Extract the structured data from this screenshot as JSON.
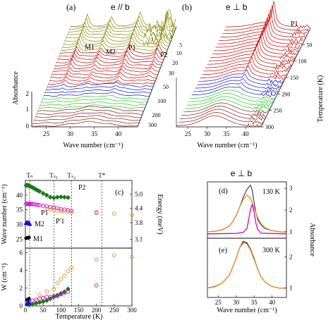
{
  "panels": {
    "a": {
      "label": "(a)",
      "title": "e // b",
      "xlabel": "Wave number (cm⁻¹)",
      "ylabel": "Absorbance",
      "xticks": [
        "25",
        "30",
        "35",
        "40"
      ],
      "yticks": [
        "0",
        "1",
        "2"
      ],
      "ticks": [
        "5",
        "10",
        "20",
        "30",
        "50",
        "100",
        "200",
        "300"
      ],
      "peaks": [
        "M1",
        "M2",
        "P1",
        "P2"
      ]
    },
    "b": {
      "label": "(b)",
      "title": "e ⊥ b",
      "xlabel": "Wave number (cm⁻¹)",
      "zlabel": "Temperature (K)",
      "xticks": [
        "25",
        "30",
        "35",
        "40"
      ],
      "ticks": [
        "50",
        "100",
        "150",
        "200",
        "250",
        "300"
      ],
      "peaks": [
        "P1"
      ]
    },
    "c": {
      "label": "(c)",
      "ylabel_top": "Wave number (cm⁻¹)",
      "ylabel_right": "Energy (meV)",
      "ylabel_bottom": "W (cm⁻¹)",
      "xlabel": "Temperature (K)",
      "topticks": [
        "Tₙ",
        "Tₛ₁",
        "Tₛ₂",
        "T*"
      ],
      "top_yticks": [
        "25",
        "30",
        "35",
        "40"
      ],
      "bottom_yticks": [
        "0",
        "2",
        "4",
        "6"
      ],
      "right_yticks": [
        "3.1",
        "3.8",
        "4.4",
        "5.0"
      ],
      "xticks": [
        "0",
        "50",
        "100",
        "150",
        "200",
        "250",
        "300"
      ],
      "series_labels": [
        "P2",
        "P1",
        "P'1",
        "M2",
        "M1"
      ]
    },
    "de": {
      "title": "e ⊥ b",
      "d_label": "(d)",
      "d_temp": "130 K",
      "e_label": "(e)",
      "e_temp": "300 K",
      "ylabel": "Absorbance",
      "xlabel": "Wave number (cm⁻¹)",
      "xticks": [
        "25",
        "30",
        "35",
        "40"
      ],
      "d_yticks": [
        "1",
        "2",
        "3"
      ],
      "e_yticks": [
        "1",
        "2"
      ]
    }
  },
  "chart_data": [
    {
      "panel": "a",
      "type": "line",
      "title": "e // b",
      "xlabel": "Wave number (cm⁻¹)",
      "ylabel": "Absorbance",
      "x_range": [
        22,
        44
      ],
      "y_range": [
        0,
        2.5
      ],
      "temperatures_K": [
        5,
        10,
        20,
        30,
        50,
        100,
        200,
        300
      ],
      "peak_positions_cm1": {
        "M1": 25.5,
        "M2": 30.5,
        "P1": 36.5,
        "P2": 42.5
      }
    },
    {
      "panel": "b",
      "type": "line",
      "title": "e ⊥ b",
      "xlabel": "Wave number (cm⁻¹)",
      "zlabel": "Temperature (K)",
      "x_range": [
        22,
        44
      ],
      "z_range": [
        0,
        300
      ],
      "peak_positions_cm1": {
        "P1": 34.5
      }
    },
    {
      "panel": "c-top",
      "type": "scatter",
      "xlabel": "Temperature (K)",
      "ylabel": "Wave number (cm⁻¹)",
      "right_ylabel": "Energy (meV)",
      "xlim": [
        0,
        300
      ],
      "ylim": [
        22,
        45
      ],
      "vlines": [
        {
          "label": "Tₙ",
          "x": 12
        },
        {
          "label": "Tₛ₁",
          "x": 80
        },
        {
          "label": "Tₛ₂",
          "x": 130
        },
        {
          "label": "T*",
          "x": 215
        }
      ],
      "series": [
        {
          "name": "P2",
          "color": "#1a7a1a",
          "marker": "diamond",
          "x": [
            2,
            5,
            8,
            10,
            12,
            15,
            20,
            25,
            30,
            35,
            40,
            50,
            60,
            70,
            80,
            90,
            100,
            110,
            120
          ],
          "y": [
            43.3,
            43.4,
            43.3,
            43.2,
            43.1,
            42.9,
            42.6,
            42.3,
            41.9,
            41.6,
            41.3,
            40.6,
            40.0,
            39.3,
            39.1,
            39.3,
            39.4,
            39.3,
            39.2
          ]
        },
        {
          "name": "P1",
          "color": "#d000d0",
          "marker": "circle-open",
          "x": [
            2,
            5,
            8,
            10,
            12,
            15,
            20,
            25,
            30,
            35,
            40,
            50,
            60,
            70,
            80,
            90,
            100,
            110,
            120,
            130,
            200
          ],
          "y": [
            37.1,
            37.1,
            37.0,
            37.0,
            37.0,
            37.0,
            37.0,
            36.9,
            36.8,
            36.7,
            36.6,
            36.4,
            36.2,
            36.0,
            35.8,
            35.6,
            35.3,
            35.1,
            34.9,
            34.7,
            34.2
          ]
        },
        {
          "name": "P'1",
          "color": "#f08a24",
          "marker": "circle-open",
          "x": [
            60,
            70,
            80,
            90,
            100,
            110,
            120,
            130,
            200,
            250,
            300
          ],
          "y": [
            35.4,
            35.1,
            34.9,
            34.7,
            34.6,
            34.5,
            34.3,
            34.1,
            33.9,
            33.7,
            33.2
          ]
        },
        {
          "name": "M2",
          "color": "#1010d0",
          "marker": "triangle",
          "x": [
            2,
            5,
            8,
            10,
            12
          ],
          "y": [
            30.6,
            30.7,
            30.6,
            30.5,
            30.3
          ]
        },
        {
          "name": "M1",
          "color": "#000000",
          "marker": "circle",
          "x": [
            2,
            5,
            8,
            10
          ],
          "y": [
            25.4,
            25.5,
            25.5,
            25.6
          ]
        }
      ]
    },
    {
      "panel": "c-bottom",
      "type": "scatter",
      "xlabel": "Temperature (K)",
      "ylabel": "W (cm⁻¹)",
      "xlim": [
        0,
        300
      ],
      "ylim": [
        0,
        6.5
      ],
      "series": [
        {
          "name": "P2",
          "color": "#1a7a1a",
          "marker": "diamond",
          "x": [
            10,
            20,
            30,
            40,
            50,
            60,
            70,
            80,
            90,
            100,
            110,
            120
          ],
          "y": [
            0.1,
            0.2,
            0.3,
            0.4,
            0.5,
            0.6,
            0.8,
            1.0,
            1.2,
            1.4,
            1.6,
            1.9
          ]
        },
        {
          "name": "P1",
          "color": "#d000d0",
          "marker": "circle-open",
          "x": [
            5,
            10,
            20,
            30,
            40,
            50,
            60,
            70,
            80,
            90,
            100,
            110,
            120,
            200
          ],
          "y": [
            0.4,
            0.5,
            0.6,
            0.7,
            0.8,
            0.9,
            1.0,
            1.0,
            1.1,
            1.1,
            1.3,
            1.5,
            1.6,
            2.3
          ]
        },
        {
          "name": "P'1",
          "color": "#f08a24",
          "marker": "circle-open",
          "x": [
            40,
            60,
            80,
            90,
            100,
            110,
            120,
            130,
            200,
            250,
            300
          ],
          "y": [
            1.2,
            1.6,
            1.9,
            2.6,
            3.0,
            3.4,
            3.9,
            4.3,
            5.2,
            5.7,
            5.5
          ]
        },
        {
          "name": "M1",
          "color": "#000000",
          "marker": "circle",
          "x": [
            5,
            10
          ],
          "y": [
            0.7,
            0.8
          ]
        },
        {
          "name": "M2",
          "color": "#1010d0",
          "marker": "triangle",
          "x": [
            5,
            10
          ],
          "y": [
            0.3,
            0.4
          ]
        }
      ]
    },
    {
      "panel": "d",
      "type": "line",
      "xlim": [
        22,
        44
      ],
      "ylim": [
        0.7,
        3.3
      ],
      "series": [
        {
          "name": "data",
          "color": "#1f3b73",
          "x": [
            22,
            24,
            26,
            28,
            29,
            30,
            31,
            32,
            33,
            33.5,
            34,
            34.5,
            35,
            35.5,
            36,
            37,
            38,
            40,
            42,
            44
          ],
          "y": [
            1.0,
            1.02,
            1.08,
            1.25,
            1.45,
            1.75,
            2.15,
            2.6,
            2.95,
            3.05,
            3.15,
            2.9,
            2.35,
            1.9,
            1.55,
            1.3,
            1.15,
            1.05,
            1.0,
            0.97
          ]
        },
        {
          "name": "fit-broad",
          "color": "#f08a24",
          "x": [
            22,
            24,
            26,
            28,
            29,
            30,
            31,
            32,
            33,
            34,
            35,
            36,
            37,
            38,
            40,
            42,
            44
          ],
          "y": [
            1.0,
            1.02,
            1.08,
            1.25,
            1.45,
            1.75,
            2.15,
            2.5,
            2.7,
            2.55,
            2.1,
            1.65,
            1.35,
            1.18,
            1.05,
            1.0,
            0.97
          ]
        },
        {
          "name": "fit-narrow",
          "color": "#d000d0",
          "x": [
            22,
            30,
            32,
            33,
            33.5,
            34,
            34.5,
            35,
            35.5,
            36,
            37,
            44
          ],
          "y": [
            0.9,
            0.92,
            0.97,
            1.15,
            1.55,
            2.05,
            2.25,
            1.9,
            1.4,
            1.1,
            0.93,
            0.9
          ]
        }
      ]
    },
    {
      "panel": "e",
      "type": "line",
      "xlim": [
        22,
        44
      ],
      "ylim": [
        0.7,
        2.6
      ],
      "series": [
        {
          "name": "data",
          "color": "#000000",
          "x": [
            22,
            24,
            26,
            28,
            29,
            30,
            31,
            32,
            33,
            34,
            35,
            36,
            37,
            38,
            40,
            42,
            44
          ],
          "y": [
            1.0,
            1.05,
            1.15,
            1.4,
            1.65,
            1.95,
            2.3,
            2.5,
            2.45,
            2.25,
            1.95,
            1.6,
            1.35,
            1.2,
            1.05,
            1.0,
            1.0
          ]
        },
        {
          "name": "fit",
          "color": "#f08a24",
          "x": [
            22,
            24,
            26,
            28,
            29,
            30,
            31,
            32,
            33,
            34,
            35,
            36,
            37,
            38,
            40,
            42,
            44
          ],
          "y": [
            1.0,
            1.04,
            1.15,
            1.4,
            1.65,
            1.95,
            2.3,
            2.45,
            2.42,
            2.22,
            1.92,
            1.6,
            1.35,
            1.2,
            1.05,
            1.0,
            1.0
          ]
        }
      ]
    }
  ]
}
